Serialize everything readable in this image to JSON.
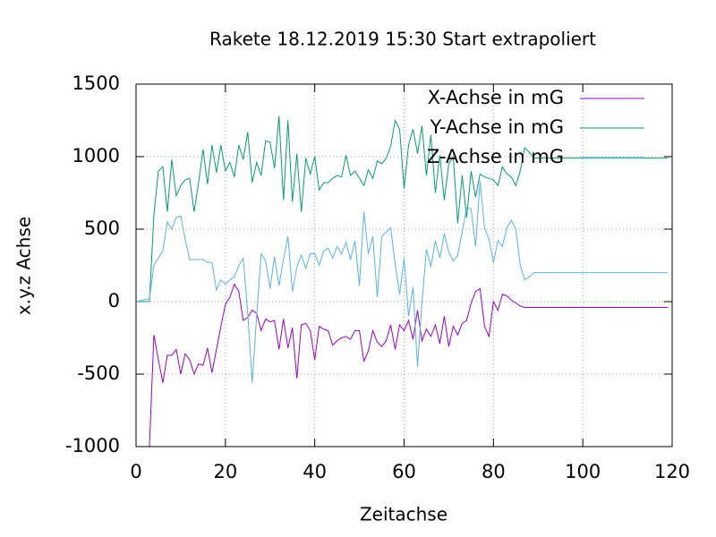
{
  "chart_data": {
    "type": "line",
    "title": "Rakete 18.12.2019 15:30 Start extrapoliert",
    "xlabel": "Zeitachse",
    "ylabel": "x.y.z Achse",
    "x": [
      0,
      3,
      4,
      5,
      6,
      7,
      8,
      9,
      10,
      11,
      12,
      13,
      14,
      15,
      16,
      17,
      18,
      19,
      20,
      21,
      22,
      23,
      24,
      25,
      26,
      27,
      28,
      29,
      30,
      31,
      32,
      33,
      34,
      35,
      36,
      37,
      38,
      39,
      40,
      41,
      42,
      43,
      44,
      45,
      46,
      47,
      48,
      49,
      50,
      51,
      52,
      53,
      54,
      55,
      56,
      57,
      58,
      59,
      60,
      61,
      62,
      63,
      64,
      65,
      66,
      67,
      68,
      69,
      70,
      71,
      72,
      73,
      74,
      75,
      76,
      77,
      78,
      79,
      80,
      81,
      82,
      83,
      84,
      85,
      86,
      87,
      88,
      89,
      119
    ],
    "series": [
      {
        "name": "X-Achse in mG",
        "color": "#9400d3",
        "values": [
          null,
          -1000,
          -230,
          -400,
          -560,
          -370,
          -370,
          -330,
          -500,
          -360,
          -400,
          -500,
          -430,
          -440,
          -320,
          -490,
          -330,
          -170,
          -20,
          30,
          120,
          70,
          -130,
          -110,
          -60,
          -80,
          -200,
          -120,
          -140,
          -130,
          -330,
          -120,
          -320,
          -180,
          -530,
          -160,
          -150,
          -200,
          -400,
          -170,
          -190,
          -200,
          -300,
          -270,
          -250,
          -240,
          -260,
          -200,
          -200,
          -410,
          -340,
          -200,
          -280,
          -310,
          -270,
          -160,
          -330,
          -160,
          -200,
          -130,
          -260,
          -60,
          -270,
          -190,
          -240,
          -160,
          -290,
          -100,
          -310,
          -170,
          -230,
          -150,
          -130,
          -10,
          70,
          90,
          -170,
          -240,
          0,
          -60,
          50,
          40,
          10,
          -10,
          -30,
          -40,
          -40,
          -40,
          -40
        ]
      },
      {
        "name": "Y-Achse in mG",
        "color": "#009e73",
        "values": [
          0,
          0,
          600,
          900,
          930,
          620,
          980,
          730,
          800,
          840,
          850,
          620,
          820,
          1050,
          810,
          1080,
          890,
          1080,
          900,
          960,
          860,
          1080,
          980,
          1170,
          820,
          960,
          870,
          1110,
          1100,
          920,
          1280,
          700,
          1250,
          690,
          1020,
          620,
          990,
          880,
          1000,
          770,
          820,
          820,
          850,
          870,
          860,
          1010,
          870,
          900,
          850,
          800,
          910,
          850,
          970,
          950,
          990,
          1070,
          1250,
          1190,
          780,
          1080,
          1190,
          1020,
          1210,
          870,
          1150,
          750,
          1010,
          700,
          950,
          1000,
          540,
          870,
          580,
          900,
          720,
          880,
          860,
          850,
          840,
          800,
          930,
          880,
          860,
          800,
          900,
          1060,
          1030,
          990,
          990
        ]
      },
      {
        "name": "Z-Achse in mG",
        "color": "#56b4e9",
        "values": [
          0,
          20,
          250,
          300,
          350,
          550,
          500,
          580,
          590,
          430,
          290,
          290,
          290,
          290,
          270,
          270,
          80,
          150,
          120,
          150,
          170,
          250,
          300,
          -80,
          -560,
          -100,
          330,
          280,
          90,
          310,
          110,
          290,
          450,
          70,
          240,
          320,
          230,
          330,
          330,
          250,
          350,
          370,
          300,
          380,
          330,
          410,
          290,
          420,
          110,
          620,
          330,
          450,
          30,
          450,
          480,
          510,
          260,
          50,
          300,
          -100,
          100,
          -450,
          -10,
          360,
          240,
          420,
          300,
          470,
          340,
          280,
          320,
          480,
          650,
          640,
          380,
          830,
          510,
          430,
          270,
          420,
          380,
          510,
          560,
          500,
          250,
          150,
          170,
          200,
          200
        ]
      }
    ],
    "xlim": [
      0,
      120
    ],
    "xticks": [
      0,
      20,
      40,
      60,
      80,
      100,
      120
    ],
    "ylim": [
      -1000,
      1500
    ],
    "yticks": [
      -1000,
      -500,
      0,
      500,
      1000,
      1500
    ],
    "grid": true,
    "legend": "top-right"
  }
}
